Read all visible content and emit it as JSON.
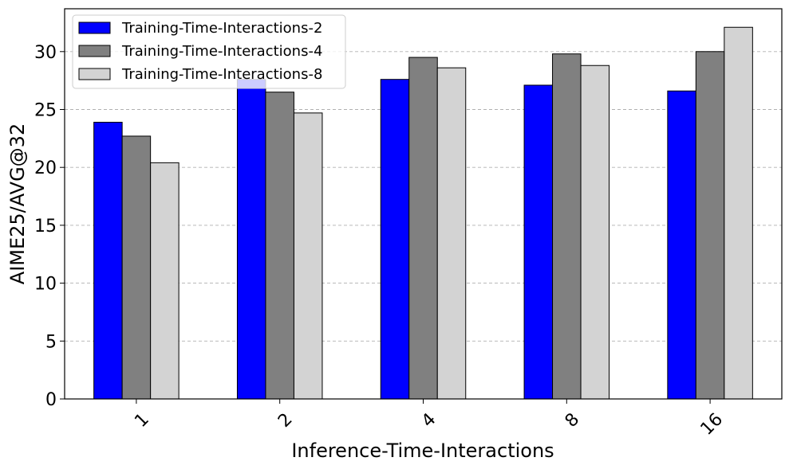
{
  "chart_data": {
    "type": "bar",
    "title": "",
    "xlabel": "Inference-Time-Interactions",
    "ylabel": "AIME25/AVG@32",
    "categories": [
      "1",
      "2",
      "4",
      "8",
      "16"
    ],
    "series": [
      {
        "name": "Training-Time-Interactions-2",
        "color": "#0000ff",
        "values": [
          23.9,
          27.6,
          27.6,
          27.1,
          26.6
        ]
      },
      {
        "name": "Training-Time-Interactions-4",
        "color": "#808080",
        "values": [
          22.7,
          26.5,
          29.5,
          29.8,
          30.0
        ]
      },
      {
        "name": "Training-Time-Interactions-8",
        "color": "#d3d3d3",
        "values": [
          20.4,
          24.7,
          28.6,
          28.8,
          32.1
        ]
      }
    ],
    "ylim": [
      0,
      33.7
    ],
    "yticks": [
      0,
      5,
      10,
      15,
      20,
      25,
      30
    ],
    "grid": "y-dashed",
    "legend_position": "top-left",
    "xtick_rotation": -45
  }
}
